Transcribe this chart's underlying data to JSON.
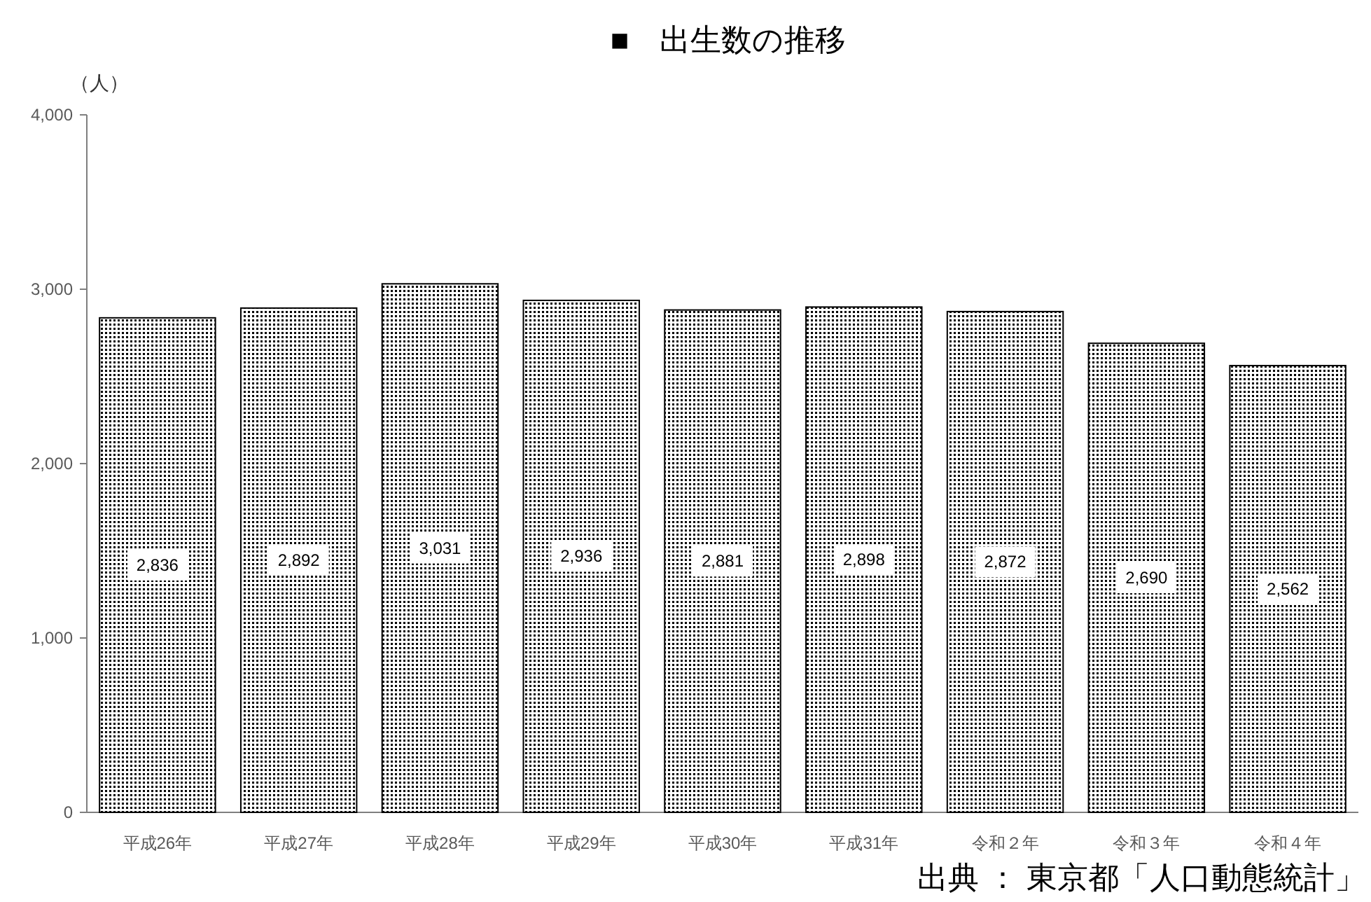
{
  "chart_data": {
    "type": "bar",
    "title": "■　出生数の推移",
    "ylabel": "（人）",
    "categories": [
      "平成26年",
      "平成27年",
      "平成28年",
      "平成29年",
      "平成30年",
      "平成31年",
      "令和２年",
      "令和３年",
      "令和４年"
    ],
    "values": [
      2836,
      2892,
      3031,
      2936,
      2881,
      2898,
      2872,
      2690,
      2562
    ],
    "value_labels": [
      "2,836",
      "2,892",
      "3,031",
      "2,936",
      "2,881",
      "2,898",
      "2,872",
      "2,690",
      "2,562"
    ],
    "color": "#000000",
    "ylim": [
      0,
      4000
    ],
    "yticks": [
      0,
      {
        "value": 1000,
        "label": "1,000"
      },
      {
        "value": 2000,
        "label": "2,000"
      },
      {
        "value": 3000,
        "label": "3,000"
      },
      {
        "value": 4000,
        "label": "4,000"
      }
    ],
    "grid": false,
    "annotations": [
      "出典 ： 東京都「人口動態統計」"
    ]
  }
}
